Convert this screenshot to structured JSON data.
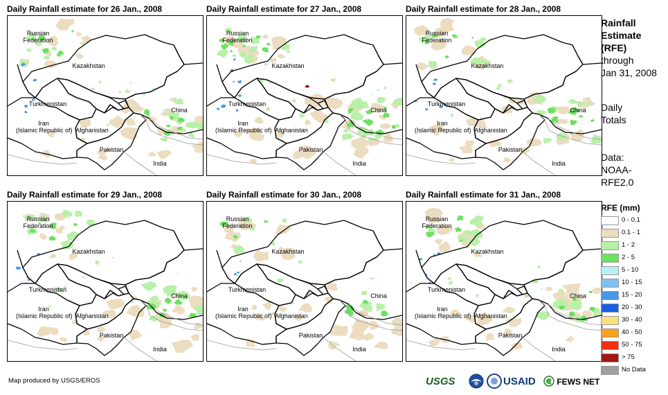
{
  "panels": [
    {
      "title": "Daily Rainfall estimate for 26 Jan., 2008",
      "rain_level": "moderate"
    },
    {
      "title": "Daily Rainfall estimate for 27 Jan., 2008",
      "rain_level": "heavy"
    },
    {
      "title": "Daily Rainfall estimate for 28 Jan., 2008",
      "rain_level": "moderate"
    },
    {
      "title": "Daily Rainfall estimate for 29 Jan., 2008",
      "rain_level": "moderate"
    },
    {
      "title": "Daily Rainfall estimate for 30 Jan., 2008",
      "rain_level": "light"
    },
    {
      "title": "Daily Rainfall estimate for 31 Jan., 2008",
      "rain_level": "moderate"
    }
  ],
  "map_labels": {
    "russia": "Russian\nFederation",
    "kazakhstan": "Kazakhstan",
    "turkmenistan": "Turkmenistan",
    "iran": "Iran\n(Islamic Republic of)",
    "afghanistan": "Afghanistan",
    "pakistan": "Pakistan",
    "china": "China",
    "india": "India"
  },
  "sidebar": {
    "title_line1": "Rainfall",
    "title_line2": "Estimate",
    "title_line3": "(RFE)",
    "through": "through",
    "date": "Jan 31, 2008",
    "totals_line1": "Daily",
    "totals_line2": "Totals",
    "data_line1": "Data:",
    "data_line2": "NOAA-",
    "data_line3": "RFE2.0"
  },
  "legend": {
    "title": "RFE (mm)",
    "items": [
      {
        "label": "0 - 0.1",
        "color": "#ffffff"
      },
      {
        "label": "0.1 - 1",
        "color": "#ecdcc0"
      },
      {
        "label": "1 - 2",
        "color": "#b8f0a8"
      },
      {
        "label": "2 - 5",
        "color": "#6de060"
      },
      {
        "label": "5 - 10",
        "color": "#b8f0f8"
      },
      {
        "label": "10 - 15",
        "color": "#80c0f0"
      },
      {
        "label": "15 - 20",
        "color": "#4898e8"
      },
      {
        "label": "20 - 30",
        "color": "#1860e0"
      },
      {
        "label": "30 - 40",
        "color": "#f8e080"
      },
      {
        "label": "40 - 50",
        "color": "#f8a020"
      },
      {
        "label": "50 - 75",
        "color": "#f03010"
      },
      {
        "label": "> 75",
        "color": "#a01818"
      },
      {
        "label": "No Data",
        "color": "#a0a0a0"
      }
    ]
  },
  "footer": {
    "credit": "Map produced by USGS/EROS",
    "logos": [
      "USGS",
      "NOAA",
      "USAID",
      "FEWS NET"
    ]
  },
  "colors": {
    "sand": "#ecdcc0",
    "light_green": "#b8f0a8",
    "green": "#6de060",
    "cyan": "#b8f0f8",
    "blue": "#4898e8",
    "dark_red": "#a01818",
    "border": "#000000",
    "minor_border": "#999999"
  }
}
